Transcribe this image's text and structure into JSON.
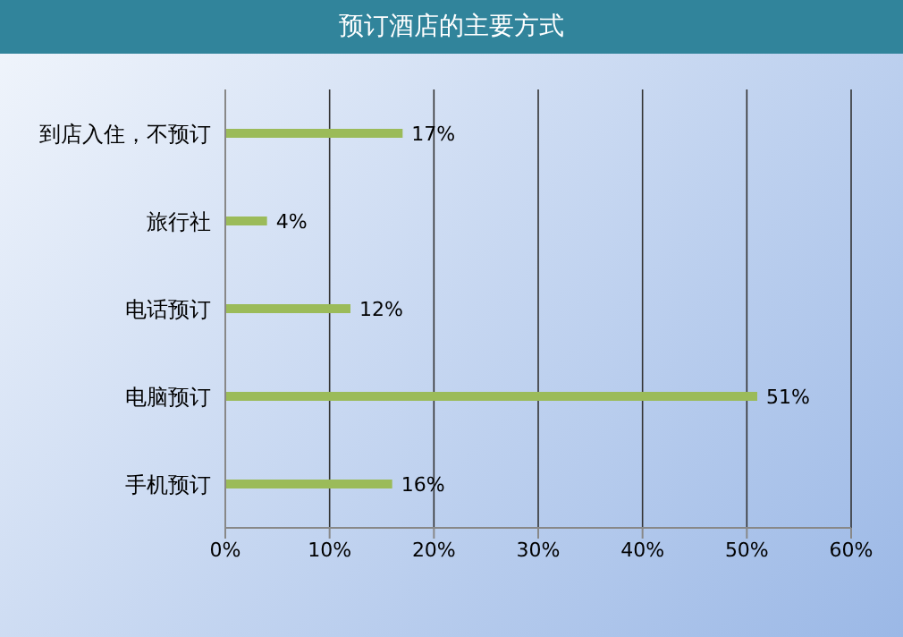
{
  "chart_data": {
    "type": "bar",
    "orientation": "horizontal",
    "title": "预订酒店的主要方式",
    "categories": [
      "到店入住，不预订",
      "旅行社",
      "电话预订",
      "电脑预订",
      "手机预订"
    ],
    "values": [
      17,
      4,
      12,
      51,
      16
    ],
    "value_labels": [
      "17%",
      "4%",
      "12%",
      "51%",
      "16%"
    ],
    "color": "#9bbb59",
    "xlim": [
      0,
      60
    ],
    "xticks": [
      {
        "value": 0,
        "label": "0%"
      },
      {
        "value": 10,
        "label": "10%"
      },
      {
        "value": 20,
        "label": "20%"
      },
      {
        "value": 30,
        "label": "30%"
      },
      {
        "value": 40,
        "label": "40%"
      },
      {
        "value": 50,
        "label": "50%"
      },
      {
        "value": 60,
        "label": "60%"
      }
    ],
    "grid": "x",
    "legend": false
  }
}
